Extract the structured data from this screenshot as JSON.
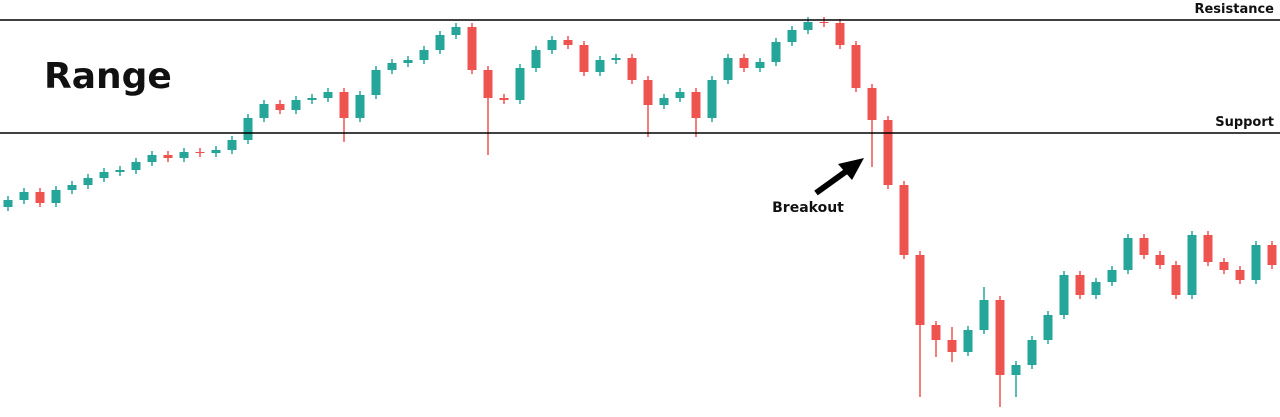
{
  "chart_data": {
    "type": "candlestick",
    "title": "Range",
    "annotations": [
      {
        "text": "Breakout"
      }
    ],
    "up_color": "#26a69a",
    "down_color": "#ef5350",
    "ylim": [
      0,
      417
    ],
    "levels": [
      {
        "name": "Resistance",
        "value": 397
      },
      {
        "name": "Support",
        "value": 284
      }
    ],
    "open": [
      210,
      217,
      225,
      214,
      227,
      232,
      239,
      245,
      247,
      255,
      262,
      259,
      265,
      264,
      267,
      277,
      299,
      313,
      307,
      317,
      319,
      325,
      299,
      322,
      347,
      354,
      357,
      367,
      382,
      390,
      347,
      319,
      317,
      349,
      367,
      377,
      372,
      345,
      357,
      359,
      337,
      312,
      319,
      325,
      299,
      337,
      359,
      349,
      355,
      375,
      387,
      395,
      394,
      372,
      329,
      297,
      232,
      162,
      92,
      77,
      65,
      87,
      117,
      42,
      52,
      77,
      102,
      142,
      122,
      135,
      147,
      179,
      162,
      152,
      122,
      182,
      155,
      147,
      137,
      172
    ],
    "high": [
      221,
      229,
      229,
      231,
      236,
      243,
      249,
      251,
      259,
      266,
      266,
      269,
      269,
      271,
      281,
      303,
      317,
      317,
      321,
      323,
      329,
      329,
      326,
      351,
      358,
      361,
      371,
      386,
      394,
      394,
      351,
      323,
      353,
      371,
      381,
      381,
      376,
      361,
      363,
      363,
      341,
      323,
      329,
      329,
      341,
      363,
      363,
      359,
      379,
      391,
      400,
      400,
      398,
      376,
      333,
      301,
      236,
      166,
      96,
      90,
      91,
      130,
      121,
      56,
      81,
      106,
      146,
      146,
      139,
      151,
      183,
      183,
      166,
      156,
      186,
      186,
      159,
      151,
      176,
      176
    ],
    "low": [
      206,
      213,
      210,
      210,
      223,
      228,
      235,
      241,
      243,
      251,
      255,
      255,
      260,
      260,
      263,
      273,
      295,
      303,
      303,
      313,
      315,
      275,
      295,
      318,
      343,
      350,
      353,
      363,
      378,
      343,
      262,
      313,
      313,
      345,
      363,
      368,
      341,
      341,
      353,
      333,
      280,
      308,
      315,
      280,
      295,
      333,
      345,
      345,
      351,
      371,
      383,
      390,
      368,
      325,
      250,
      228,
      158,
      20,
      60,
      55,
      61,
      83,
      10,
      20,
      48,
      73,
      98,
      118,
      118,
      131,
      143,
      158,
      148,
      118,
      118,
      151,
      143,
      133,
      133,
      148
    ],
    "close": [
      217,
      225,
      214,
      227,
      232,
      239,
      245,
      247,
      255,
      262,
      259,
      265,
      264,
      267,
      277,
      299,
      313,
      307,
      317,
      319,
      325,
      299,
      322,
      347,
      354,
      357,
      367,
      382,
      390,
      347,
      319,
      317,
      349,
      367,
      377,
      372,
      345,
      357,
      359,
      337,
      312,
      319,
      325,
      299,
      337,
      359,
      349,
      355,
      375,
      387,
      395,
      394,
      372,
      329,
      297,
      232,
      162,
      92,
      77,
      65,
      87,
      117,
      42,
      52,
      77,
      102,
      142,
      122,
      135,
      147,
      179,
      162,
      152,
      122,
      182,
      155,
      147,
      137,
      172,
      152
    ]
  }
}
